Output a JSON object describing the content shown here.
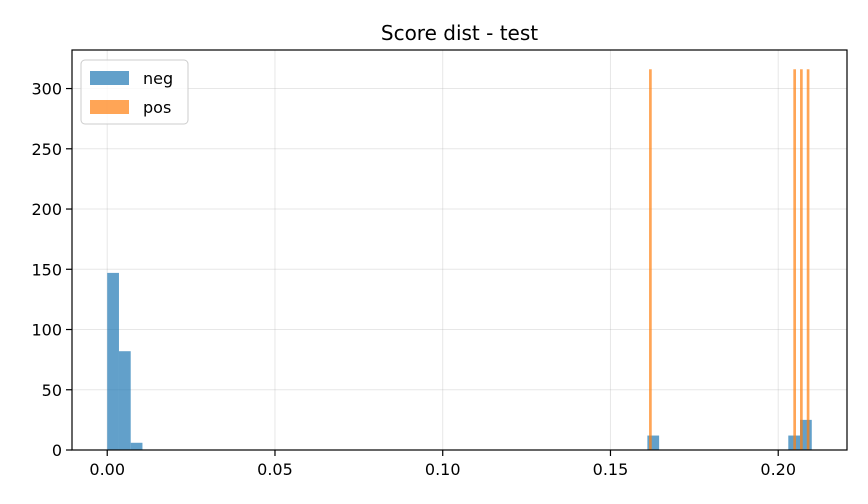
{
  "chart_data": {
    "type": "bar",
    "title": "Score dist - test",
    "xlabel": "",
    "ylabel": "",
    "xlim": [
      -0.0105,
      0.2205
    ],
    "ylim": [
      0,
      332
    ],
    "x_ticks": [
      0.0,
      0.05,
      0.1,
      0.15,
      0.2
    ],
    "x_tick_labels": [
      "0.00",
      "0.05",
      "0.10",
      "0.15",
      "0.20"
    ],
    "y_ticks": [
      0,
      50,
      100,
      150,
      200,
      250,
      300
    ],
    "y_tick_labels": [
      "0",
      "50",
      "100",
      "150",
      "200",
      "250",
      "300"
    ],
    "grid": true,
    "legend": "top-left",
    "series": [
      {
        "name": "neg",
        "color": "#1f77b4",
        "opacity": 0.7,
        "bins": [
          {
            "x0": 0.0,
            "x1": 0.0035,
            "value": 147
          },
          {
            "x0": 0.0035,
            "x1": 0.007,
            "value": 82
          },
          {
            "x0": 0.007,
            "x1": 0.0105,
            "value": 6
          },
          {
            "x0": 0.161,
            "x1": 0.1645,
            "value": 12
          },
          {
            "x0": 0.203,
            "x1": 0.2065,
            "value": 12
          },
          {
            "x0": 0.2065,
            "x1": 0.21,
            "value": 25
          }
        ]
      },
      {
        "name": "pos",
        "color": "#ff7f0e",
        "opacity": 0.7,
        "bins": [
          {
            "x0": 0.1615,
            "x1": 0.1623,
            "value": 316
          },
          {
            "x0": 0.2045,
            "x1": 0.2053,
            "value": 316
          },
          {
            "x0": 0.2065,
            "x1": 0.2073,
            "value": 316
          },
          {
            "x0": 0.2085,
            "x1": 0.2093,
            "value": 316
          }
        ]
      }
    ]
  }
}
